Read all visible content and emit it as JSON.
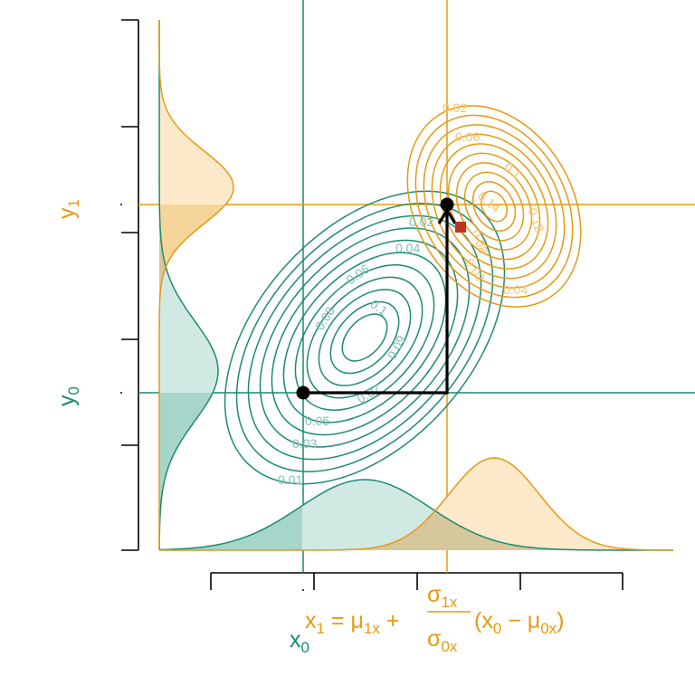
{
  "colors": {
    "green": "#1b8a74",
    "orange": "#e69a12",
    "green_fill": "#d1e9e3",
    "green_fill_dark": "#a6d6ca",
    "orange_fill": "#fbe9c9",
    "orange_fill_dark": "#f6d59a",
    "overlap_fill": "#d6c79c",
    "marker": "#c0321a",
    "axis": "#000000"
  },
  "labels": {
    "y0": "y",
    "y0_sub": "0",
    "y1": "y",
    "y1_sub": "1",
    "x0": "x",
    "x0_sub": "0",
    "eq_lhs": "x",
    "eq_lhs_sub": "1",
    "eq_eq": " = μ",
    "eq_mu_sub": "1x",
    "eq_plus": " + ",
    "eq_num": "σ",
    "eq_num_sub": "1x",
    "eq_den": "σ",
    "eq_den_sub": "0x",
    "eq_paren_open": "(x",
    "eq_paren_x_sub": "0",
    "eq_minus": " − μ",
    "eq_mu0_sub": "0x",
    "eq_paren_close": ")"
  },
  "green_contours": [
    "0.01",
    "0.03",
    "0.05",
    "0.07",
    "0.09",
    "0.1",
    "0.08",
    "0.06",
    "0.04",
    "0.02"
  ],
  "orange_contours": [
    "0.02",
    "0.06",
    "0.1",
    "0.14",
    "0.12",
    "0.08",
    "0.04",
    "0.02"
  ]
}
